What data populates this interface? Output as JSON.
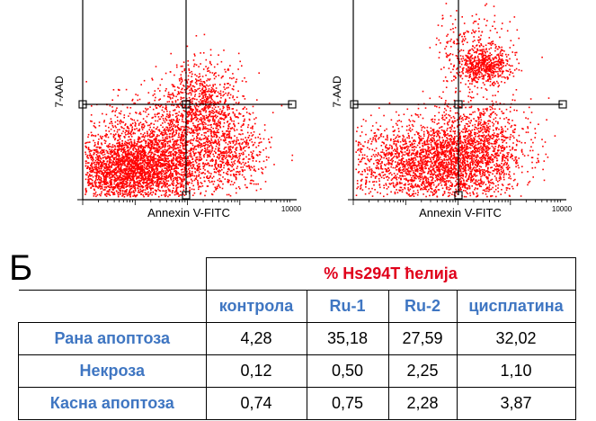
{
  "plots": [
    {
      "id": "left",
      "ylabel": "7-AAD",
      "xlabel": "Annexin V-FITC",
      "xmax_label": "10000"
    },
    {
      "id": "right",
      "ylabel": "7-AAD",
      "xlabel": "Annexin V-FITC",
      "xmax_label": "10000"
    }
  ],
  "colors": {
    "dots": "#ff0000",
    "header_red": "#e0001b",
    "label_blue": "#3f76c2"
  },
  "panel_letter": "Б",
  "table": {
    "title": "% Hs294T ћелија",
    "columns": [
      "контрола",
      "Ru-1",
      "Ru-2",
      "цисплатина"
    ],
    "rows": [
      {
        "label": "Рана апоптоза",
        "values": [
          "4,28",
          "35,18",
          "27,59",
          "32,02"
        ]
      },
      {
        "label": "Некроза",
        "values": [
          "0,12",
          "0,50",
          "2,25",
          "1,10"
        ]
      },
      {
        "label": "Касна апоптоза",
        "values": [
          "0,74",
          "0,75",
          "2,28",
          "3,87"
        ]
      }
    ]
  }
}
